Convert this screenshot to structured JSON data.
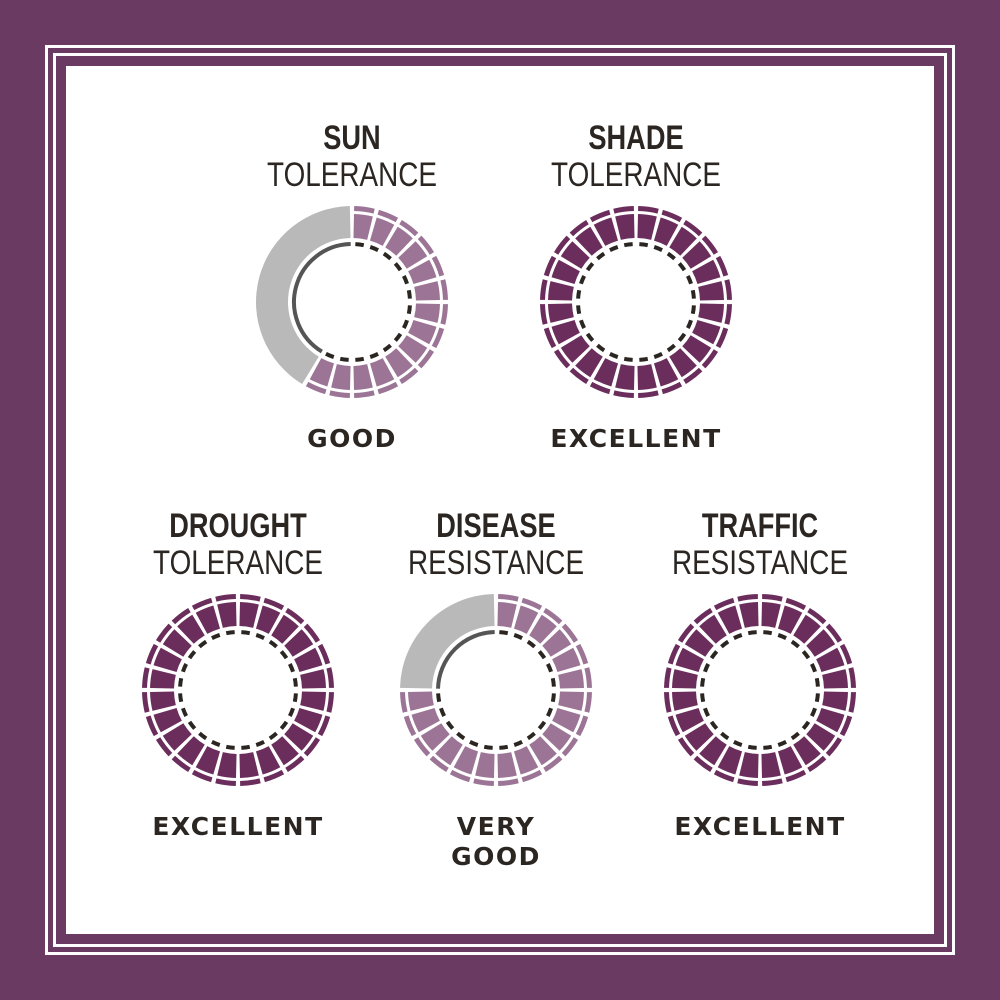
{
  "colors": {
    "border": "#6a3a62",
    "excellent": "#6b2d5c",
    "partial": "#9c7596",
    "empty": "#b9b9b9",
    "dash": "#2b2622"
  },
  "segments_per_ring": 24,
  "metrics": [
    {
      "title": "SUN",
      "subtitle": "TOLERANCE",
      "rating": "GOOD",
      "fill": 0.6,
      "color": "partial"
    },
    {
      "title": "SHADE",
      "subtitle": "TOLERANCE",
      "rating": "EXCELLENT",
      "fill": 1.0,
      "color": "excellent"
    },
    {
      "title": "DROUGHT",
      "subtitle": "TOLERANCE",
      "rating": "EXCELLENT",
      "fill": 1.0,
      "color": "excellent"
    },
    {
      "title": "DISEASE",
      "subtitle": "RESISTANCE",
      "rating": "VERY GOOD",
      "fill": 0.75,
      "color": "partial"
    },
    {
      "title": "TRAFFIC",
      "subtitle": "RESISTANCE",
      "rating": "EXCELLENT",
      "fill": 1.0,
      "color": "excellent"
    }
  ]
}
